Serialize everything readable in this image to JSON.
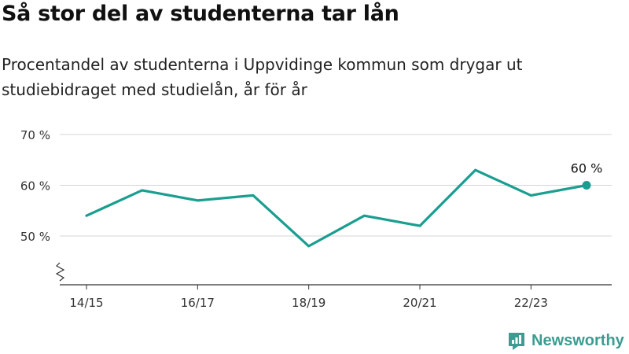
{
  "title": "Så stor del av studenterna tar lån",
  "subtitle": "Procentandel av studenterna i Uppvidinge kommun som drygar ut studiebidraget med studielån, år för år",
  "brand": {
    "name": "Newsworthy",
    "color": "#3c9c91"
  },
  "chart_data": {
    "type": "line",
    "x": [
      "14/15",
      "15/16",
      "16/17",
      "17/18",
      "18/19",
      "19/20",
      "20/21",
      "21/22",
      "22/23",
      "23/24"
    ],
    "x_tick_labels": [
      "14/15",
      "16/17",
      "18/19",
      "20/21",
      "22/23"
    ],
    "y_tick_labels": [
      "50 %",
      "60 %",
      "70 %"
    ],
    "y_ticks": [
      50,
      60,
      70
    ],
    "series": [
      {
        "values": [
          54,
          59,
          57,
          58,
          48,
          54,
          52,
          63,
          58,
          60
        ],
        "color": "#1a9e90"
      }
    ],
    "last_label": "60 %",
    "ylim": [
      40,
      70
    ],
    "axis_break": true,
    "grid": true
  }
}
